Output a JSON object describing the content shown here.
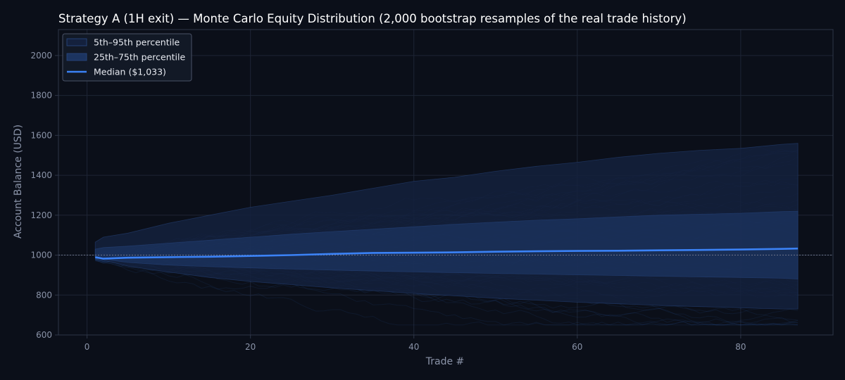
{
  "colors": {
    "background": "#0b0f19",
    "grid": "#1e2535",
    "spine": "#2e3648",
    "text": "#8a93a8",
    "title": "#ffffff",
    "band_outer": "#14213d",
    "band_inner": "#1c3460",
    "median": "#3b82f6",
    "paths": "#2f5aa8",
    "baseline": "#6b7388"
  },
  "chart_data": {
    "type": "area",
    "title": "Strategy A (1H exit) — Monte Carlo Equity Distribution (2,000 bootstrap resamples of the real trade history)",
    "xlabel": "Trade #",
    "ylabel": "Account Balance (USD)",
    "xlim": [
      -3.5,
      91.3
    ],
    "ylim": [
      600,
      2130
    ],
    "xticks": [
      0,
      20,
      40,
      60,
      80
    ],
    "yticks": [
      600,
      800,
      1000,
      1200,
      1400,
      1600,
      1800,
      2000
    ],
    "grid": true,
    "legend_position": "top-left",
    "baseline": 1000,
    "x": [
      1,
      2,
      5,
      10,
      15,
      20,
      25,
      30,
      35,
      40,
      45,
      50,
      55,
      60,
      65,
      70,
      75,
      80,
      85,
      87
    ],
    "series": [
      {
        "name": "5th–95th percentile",
        "kind": "band",
        "lower": [
          990,
          975,
          945,
          915,
          888,
          868,
          852,
          836,
          822,
          808,
          796,
          784,
          774,
          764,
          756,
          748,
          742,
          736,
          730,
          730
        ],
        "upper": [
          1065,
          1090,
          1110,
          1160,
          1200,
          1240,
          1270,
          1300,
          1335,
          1370,
          1390,
          1420,
          1445,
          1465,
          1490,
          1510,
          1525,
          1535,
          1555,
          1560
        ]
      },
      {
        "name": "25th–75th percentile",
        "kind": "band",
        "lower": [
          990,
          980,
          963,
          950,
          942,
          936,
          930,
          925,
          920,
          916,
          912,
          908,
          905,
          901,
          898,
          894,
          891,
          888,
          884,
          880
        ],
        "upper": [
          1030,
          1038,
          1045,
          1060,
          1075,
          1090,
          1105,
          1118,
          1130,
          1142,
          1155,
          1165,
          1175,
          1182,
          1192,
          1200,
          1205,
          1210,
          1218,
          1220
        ]
      },
      {
        "name": "Median ($1,033)",
        "kind": "line",
        "values": [
          990,
          982,
          987,
          990,
          992,
          996,
          1000,
          1006,
          1011,
          1012,
          1014,
          1017,
          1019,
          1021,
          1022,
          1024,
          1026,
          1028,
          1031,
          1033
        ]
      }
    ]
  }
}
